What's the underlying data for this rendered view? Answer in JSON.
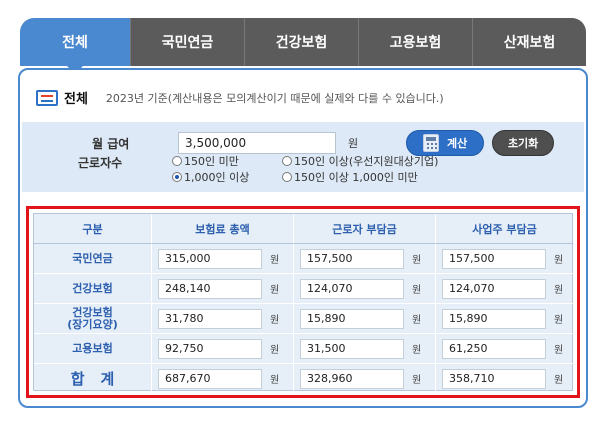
{
  "tabs": [
    {
      "label": "전체",
      "active": true
    },
    {
      "label": "국민연금",
      "active": false
    },
    {
      "label": "건강보험",
      "active": false
    },
    {
      "label": "고용보험",
      "active": false
    },
    {
      "label": "산재보험",
      "active": false
    }
  ],
  "header": {
    "title": "전체",
    "note": "2023년 기준(계산내용은 모의계산이기 때문에 실제와 다를 수 있습니다.)"
  },
  "form": {
    "salary_label": "월 급여",
    "salary_value": "3,500,000",
    "salary_unit": "원",
    "calc_button": "계산",
    "reset_button": "초기화",
    "workers_label": "근로자수",
    "options": [
      {
        "label": "150인 미만",
        "checked": false
      },
      {
        "label": "150인 이상(우선지원대상기업)",
        "checked": false
      },
      {
        "label": "1,000인 이상",
        "checked": true
      },
      {
        "label": "150인 이상 1,000인 미만",
        "checked": false
      }
    ]
  },
  "table": {
    "headers": [
      "구분",
      "보험료 총액",
      "근로자 부담금",
      "사업주 부담금"
    ],
    "unit": "원",
    "rows": [
      {
        "label": "국민연금",
        "total": "315,000",
        "worker": "157,500",
        "employer": "157,500"
      },
      {
        "label": "건강보험",
        "total": "248,140",
        "worker": "124,070",
        "employer": "124,070"
      },
      {
        "label": "건강보험\n(장기요양)",
        "total": "31,780",
        "worker": "15,890",
        "employer": "15,890"
      },
      {
        "label": "고용보험",
        "total": "92,750",
        "worker": "31,500",
        "employer": "61,250"
      },
      {
        "label": "합계",
        "total": "687,670",
        "worker": "328,960",
        "employer": "358,710"
      }
    ]
  },
  "colors": {
    "accent": "#4a88cf",
    "tab_inactive": "#5b5b5b",
    "highlight_border": "#e2131b",
    "table_bg": "#e6eef8",
    "header_text": "#2c5fae"
  }
}
